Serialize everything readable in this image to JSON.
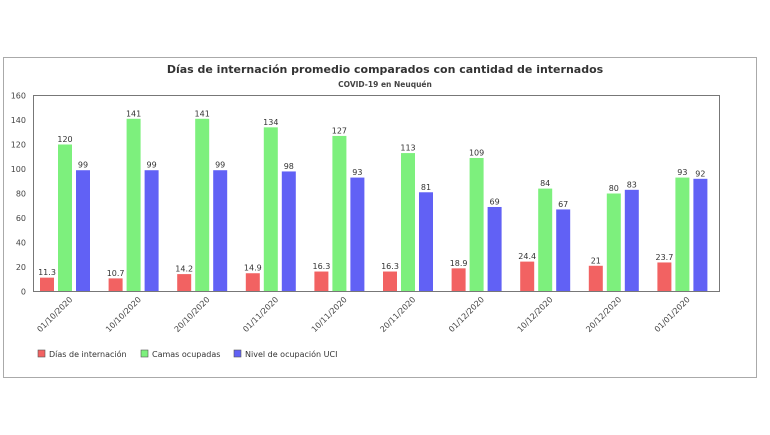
{
  "chart_data": {
    "type": "bar",
    "title": "Días de internación promedio comparados con cantidad de internados",
    "subtitle": "COVID-19 en Neuquén",
    "xlabel": "",
    "ylabel": "",
    "ylim": [
      0,
      160
    ],
    "yticks": [
      0,
      20,
      40,
      60,
      80,
      100,
      120,
      140,
      160
    ],
    "categories": [
      "01/10/2020",
      "10/10/2020",
      "20/10/2020",
      "01/11/2020",
      "10/11/2020",
      "20/11/2020",
      "01/12/2020",
      "10/12/2020",
      "20/12/2020",
      "01/01/2020"
    ],
    "series": [
      {
        "name": "Días de internación",
        "color": "#f26262",
        "values": [
          11.3,
          10.7,
          14.2,
          14.9,
          16.3,
          16.3,
          18.9,
          24.4,
          21,
          23.7
        ]
      },
      {
        "name": "Camas ocupadas",
        "color": "#7df07d",
        "values": [
          120,
          141,
          141,
          134,
          127,
          113,
          109,
          84,
          80,
          93
        ]
      },
      {
        "name": "Nivel de ocupación UCI",
        "color": "#6161f5",
        "values": [
          99,
          99,
          99,
          98,
          93,
          81,
          69,
          67,
          83,
          92
        ]
      }
    ],
    "legend_position": "bottom-left",
    "grid": false
  }
}
